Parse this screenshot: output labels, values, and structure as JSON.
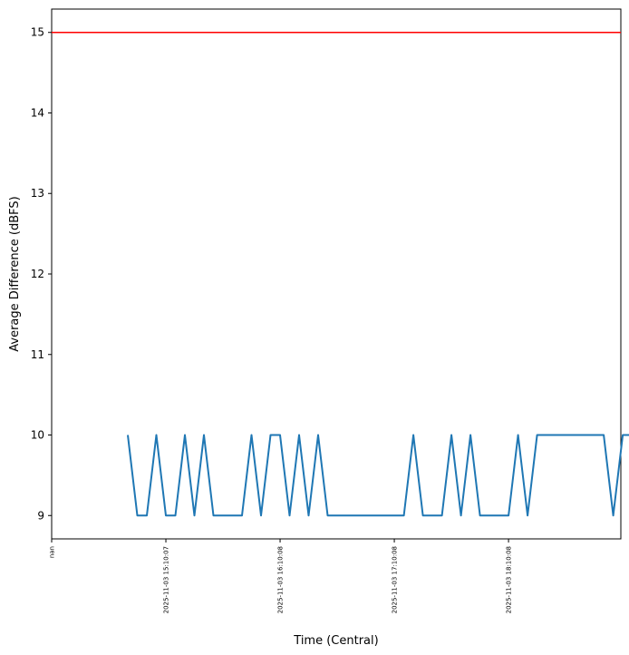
{
  "chart_data": {
    "type": "line",
    "title": "",
    "xlabel": "Time (Central)",
    "ylabel": "Average Difference (dBFS)",
    "ylim": [
      8.71,
      15.29
    ],
    "xlim": [
      "14:10",
      "19:09"
    ],
    "yticks": [
      9,
      10,
      11,
      12,
      13,
      14,
      15
    ],
    "xticks": [
      {
        "at": "14:10",
        "label": "nan"
      },
      {
        "at": "15:10",
        "label": "2025-11-03 15:10:07"
      },
      {
        "at": "16:10",
        "label": "2025-11-03 16:10:08"
      },
      {
        "at": "17:10",
        "label": "2025-11-03 17:10:08"
      },
      {
        "at": "18:10",
        "label": "2025-11-03 18:10:08"
      }
    ],
    "grid": false,
    "threshold": {
      "y": 15,
      "color": "#ff0000"
    },
    "series": [
      {
        "color": "#1f77b4",
        "start": "14:50",
        "interval_minutes": 5,
        "values": [
          10,
          9,
          9,
          10,
          9,
          9,
          10,
          9,
          10,
          9,
          9,
          9,
          9,
          10,
          9,
          10,
          10,
          9,
          10,
          9,
          10,
          9,
          9,
          9,
          9,
          9,
          9,
          9,
          9,
          9,
          10,
          9,
          9,
          9,
          10,
          9,
          10,
          9,
          9,
          9,
          9,
          10,
          9,
          10,
          10,
          10,
          10,
          10,
          10,
          10,
          10,
          9,
          10,
          10
        ]
      }
    ]
  }
}
